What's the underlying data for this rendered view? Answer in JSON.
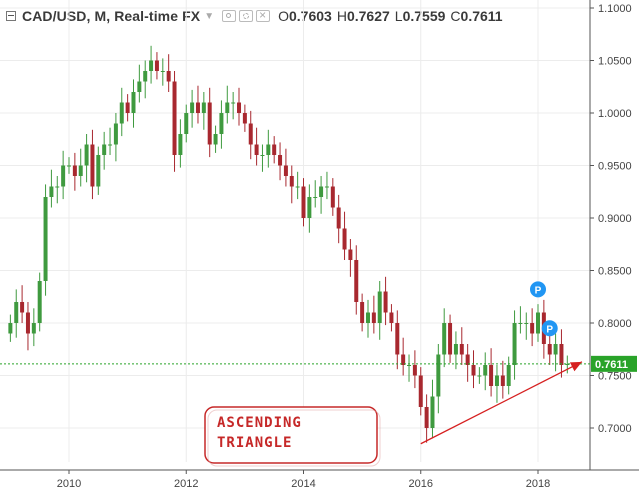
{
  "header": {
    "symbol": "CAD/USD, M, Real-time FX",
    "ohlc": [
      {
        "label": "O",
        "value": "0.7603"
      },
      {
        "label": "H",
        "value": "0.7627"
      },
      {
        "label": "L",
        "value": "0.7559"
      },
      {
        "label": "C",
        "value": "0.7611"
      }
    ]
  },
  "chart_data": {
    "type": "candlestick",
    "interval": "monthly",
    "ylim": [
      0.66,
      1.1
    ],
    "xlim": [
      2009.0,
      2018.9
    ],
    "y_ticks": [
      "1.1000",
      "1.0500",
      "1.0000",
      "0.9500",
      "0.9000",
      "0.8500",
      "0.8000",
      "0.7500",
      "0.7000"
    ],
    "y_tick_values": [
      1.1,
      1.05,
      1.0,
      0.95,
      0.9,
      0.85,
      0.8,
      0.75,
      0.7
    ],
    "x_ticks": [
      "2010",
      "2012",
      "2014",
      "2016",
      "2018"
    ],
    "x_tick_values": [
      2010,
      2012,
      2014,
      2016,
      2018
    ],
    "last_price_label": "0.7611",
    "last_price": 0.7611,
    "annotation_text": [
      "ASCENDING",
      "TRIANGLE"
    ],
    "trendline": {
      "from": [
        2016.0,
        0.685
      ],
      "to": [
        2018.75,
        0.763
      ]
    },
    "markers": [
      {
        "label": "P",
        "x": 2018.0,
        "price": 0.832
      },
      {
        "label": "P",
        "x": 2018.2,
        "price": 0.795
      }
    ],
    "colors": {
      "up": "#3f9a3f",
      "down": "#a8282f",
      "last_price": "#29a329",
      "grid": "#ececec",
      "arrow": "#d62020",
      "marker": "#2196f3"
    },
    "close_points": [
      [
        2009.0,
        0.8
      ],
      [
        2009.1,
        0.82
      ],
      [
        2009.2,
        0.81
      ],
      [
        2009.3,
        0.79
      ],
      [
        2009.4,
        0.8
      ],
      [
        2009.5,
        0.84
      ],
      [
        2009.6,
        0.92
      ],
      [
        2009.7,
        0.93
      ],
      [
        2009.8,
        0.93
      ],
      [
        2009.9,
        0.95
      ],
      [
        2010.0,
        0.95
      ],
      [
        2010.1,
        0.94
      ],
      [
        2010.2,
        0.95
      ],
      [
        2010.3,
        0.97
      ],
      [
        2010.4,
        0.93
      ],
      [
        2010.5,
        0.96
      ],
      [
        2010.6,
        0.97
      ],
      [
        2010.7,
        0.97
      ],
      [
        2010.8,
        0.99
      ],
      [
        2010.9,
        1.01
      ],
      [
        2011.0,
        1.0
      ],
      [
        2011.1,
        1.02
      ],
      [
        2011.2,
        1.03
      ],
      [
        2011.3,
        1.04
      ],
      [
        2011.4,
        1.05
      ],
      [
        2011.5,
        1.04
      ],
      [
        2011.6,
        1.04
      ],
      [
        2011.7,
        1.03
      ],
      [
        2011.8,
        0.96
      ],
      [
        2011.9,
        0.98
      ],
      [
        2012.0,
        1.0
      ],
      [
        2012.1,
        1.01
      ],
      [
        2012.2,
        1.0
      ],
      [
        2012.3,
        1.01
      ],
      [
        2012.4,
        0.97
      ],
      [
        2012.5,
        0.98
      ],
      [
        2012.6,
        1.0
      ],
      [
        2012.7,
        1.01
      ],
      [
        2012.8,
        1.01
      ],
      [
        2012.9,
        1.0
      ],
      [
        2013.0,
        0.99
      ],
      [
        2013.1,
        0.97
      ],
      [
        2013.2,
        0.96
      ],
      [
        2013.3,
        0.96
      ],
      [
        2013.4,
        0.97
      ],
      [
        2013.5,
        0.96
      ],
      [
        2013.6,
        0.95
      ],
      [
        2013.7,
        0.94
      ],
      [
        2013.8,
        0.93
      ],
      [
        2013.9,
        0.93
      ],
      [
        2014.0,
        0.9
      ],
      [
        2014.1,
        0.92
      ],
      [
        2014.2,
        0.92
      ],
      [
        2014.3,
        0.93
      ],
      [
        2014.4,
        0.93
      ],
      [
        2014.5,
        0.91
      ],
      [
        2014.6,
        0.89
      ],
      [
        2014.7,
        0.87
      ],
      [
        2014.8,
        0.86
      ],
      [
        2014.9,
        0.82
      ],
      [
        2015.0,
        0.8
      ],
      [
        2015.1,
        0.81
      ],
      [
        2015.2,
        0.8
      ],
      [
        2015.3,
        0.83
      ],
      [
        2015.4,
        0.81
      ],
      [
        2015.5,
        0.8
      ],
      [
        2015.6,
        0.77
      ],
      [
        2015.7,
        0.76
      ],
      [
        2015.8,
        0.76
      ],
      [
        2015.9,
        0.75
      ],
      [
        2016.0,
        0.72
      ],
      [
        2016.1,
        0.7
      ],
      [
        2016.2,
        0.73
      ],
      [
        2016.3,
        0.77
      ],
      [
        2016.4,
        0.8
      ],
      [
        2016.5,
        0.77
      ],
      [
        2016.6,
        0.78
      ],
      [
        2016.7,
        0.77
      ],
      [
        2016.8,
        0.76
      ],
      [
        2016.9,
        0.75
      ],
      [
        2017.0,
        0.75
      ],
      [
        2017.1,
        0.76
      ],
      [
        2017.2,
        0.74
      ],
      [
        2017.3,
        0.75
      ],
      [
        2017.4,
        0.74
      ],
      [
        2017.5,
        0.76
      ],
      [
        2017.6,
        0.8
      ],
      [
        2017.7,
        0.8
      ],
      [
        2017.8,
        0.8
      ],
      [
        2017.9,
        0.79
      ],
      [
        2018.0,
        0.81
      ],
      [
        2018.1,
        0.78
      ],
      [
        2018.2,
        0.77
      ],
      [
        2018.3,
        0.78
      ],
      [
        2018.4,
        0.76
      ],
      [
        2018.5,
        0.761
      ]
    ]
  }
}
